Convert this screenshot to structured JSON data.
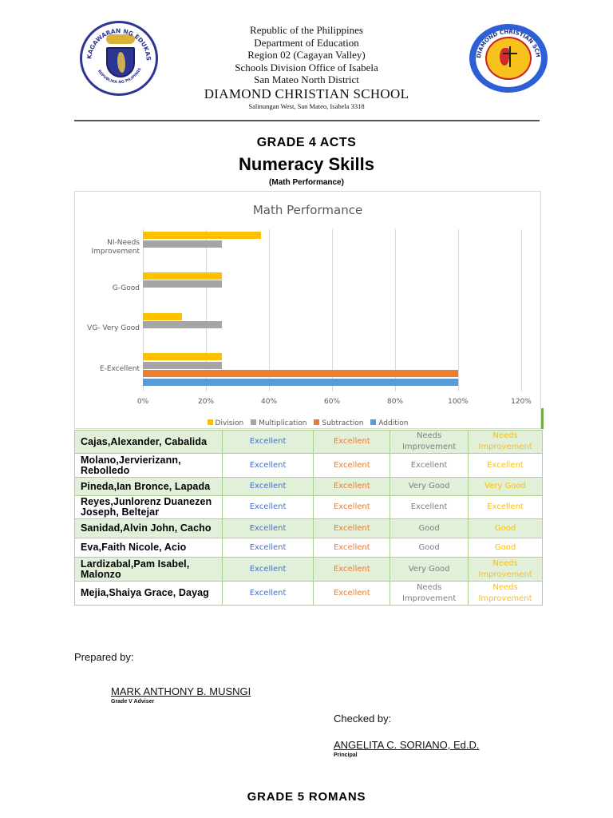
{
  "header": {
    "lines": [
      "Republic of the Philippines",
      "Department of Education",
      "Region 02 (Cagayan Valley)",
      "Schools Division Office of Isabela",
      "San Mateo North District"
    ],
    "school_name": "DIAMOND CHRISTIAN SCHOOL",
    "address": "Salinungan West, San Mateo, Isabela 3318",
    "left_logo": "deped-seal-icon",
    "right_logo": "diamond-christian-school-seal-icon",
    "left_logo_text": "KAGAWARAN NG EDUKASYON · REPUBLIKA NG PILIPINAS",
    "right_logo_text": "DIAMOND CHRISTIAN SCHOOL · The United Methodist Church · 1994 · Salinungan West, San Mateo, Isabela"
  },
  "titles": {
    "grade": "GRADE 4 ACTS",
    "main": "Numeracy Skills",
    "sub": "(Math Performance)"
  },
  "chart_data": {
    "type": "bar",
    "orientation": "horizontal",
    "title": "Math Performance",
    "categories": [
      "E-Excellent",
      "VG- Very Good",
      "G-Good",
      "NI-Needs Improvement"
    ],
    "series": [
      {
        "name": "Addition",
        "color": "#5b9bd5",
        "values": [
          100,
          0,
          0,
          0
        ]
      },
      {
        "name": "Subtraction",
        "color": "#ed7d31",
        "values": [
          100,
          0,
          0,
          0
        ]
      },
      {
        "name": "Multiplication",
        "color": "#a5a5a5",
        "values": [
          25,
          25,
          25,
          25
        ]
      },
      {
        "name": "Division",
        "color": "#ffc000",
        "values": [
          25,
          12.5,
          25,
          37.5
        ]
      }
    ],
    "xlabel": "",
    "ylabel": "",
    "xlim": [
      0,
      120
    ],
    "xticks": [
      "0%",
      "20%",
      "40%",
      "60%",
      "80%",
      "100%",
      "120%"
    ],
    "grid": true,
    "legend_position": "bottom",
    "legend": [
      "Division",
      "Multiplication",
      "Subtraction",
      "Addition"
    ]
  },
  "table": {
    "rows": [
      {
        "name": "Cajas,Alexander, Cabalida",
        "addition": "Excellent",
        "subtraction": "Excellent",
        "multiplication": "Needs Improvement",
        "division": "Needs Improvement"
      },
      {
        "name": "Molano,Jervierizann, Rebolledo",
        "addition": "Excellent",
        "subtraction": "Excellent",
        "multiplication": "Excellent",
        "division": "Excellent"
      },
      {
        "name": "Pineda,Ian Bronce, Lapada",
        "addition": "Excellent",
        "subtraction": "Excellent",
        "multiplication": "Very Good",
        "division": "Very Good"
      },
      {
        "name": "Reyes,Junlorenz Duanezen Joseph, Beltejar",
        "addition": "Excellent",
        "subtraction": "Excellent",
        "multiplication": "Excellent",
        "division": "Excellent"
      },
      {
        "name": "Sanidad,Alvin John, Cacho",
        "addition": "Excellent",
        "subtraction": "Excellent",
        "multiplication": "Good",
        "division": "Good"
      },
      {
        "name": "Eva,Faith Nicole, Acio",
        "addition": "Excellent",
        "subtraction": "Excellent",
        "multiplication": "Good",
        "division": "Good"
      },
      {
        "name": "Lardizabal,Pam Isabel, Malonzo",
        "addition": "Excellent",
        "subtraction": "Excellent",
        "multiplication": "Very Good",
        "division": "Needs Improvement"
      },
      {
        "name": "Mejia,Shaiya Grace, Dayag",
        "addition": "Excellent",
        "subtraction": "Excellent",
        "multiplication": "Needs Improvement",
        "division": "Needs Improvement"
      }
    ],
    "colors": {
      "addition": "#4472c4",
      "subtraction": "#ed7d31",
      "multiplication": "#7f7f7f",
      "division": "#ffc000",
      "shaded_row": "#e2efd9",
      "border": "#a9d08e"
    }
  },
  "signatures": {
    "prepared_label": "Prepared by:",
    "prepared_name": "MARK ANTHONY B. MUSNGI",
    "prepared_role": "Grade V Adviser",
    "checked_label": "Checked by:",
    "checked_name": "ANGELITA C. SORIANO, Ed.D.",
    "checked_role": "Principal"
  },
  "next_section": {
    "grade": "GRADE 5 ROMANS"
  }
}
